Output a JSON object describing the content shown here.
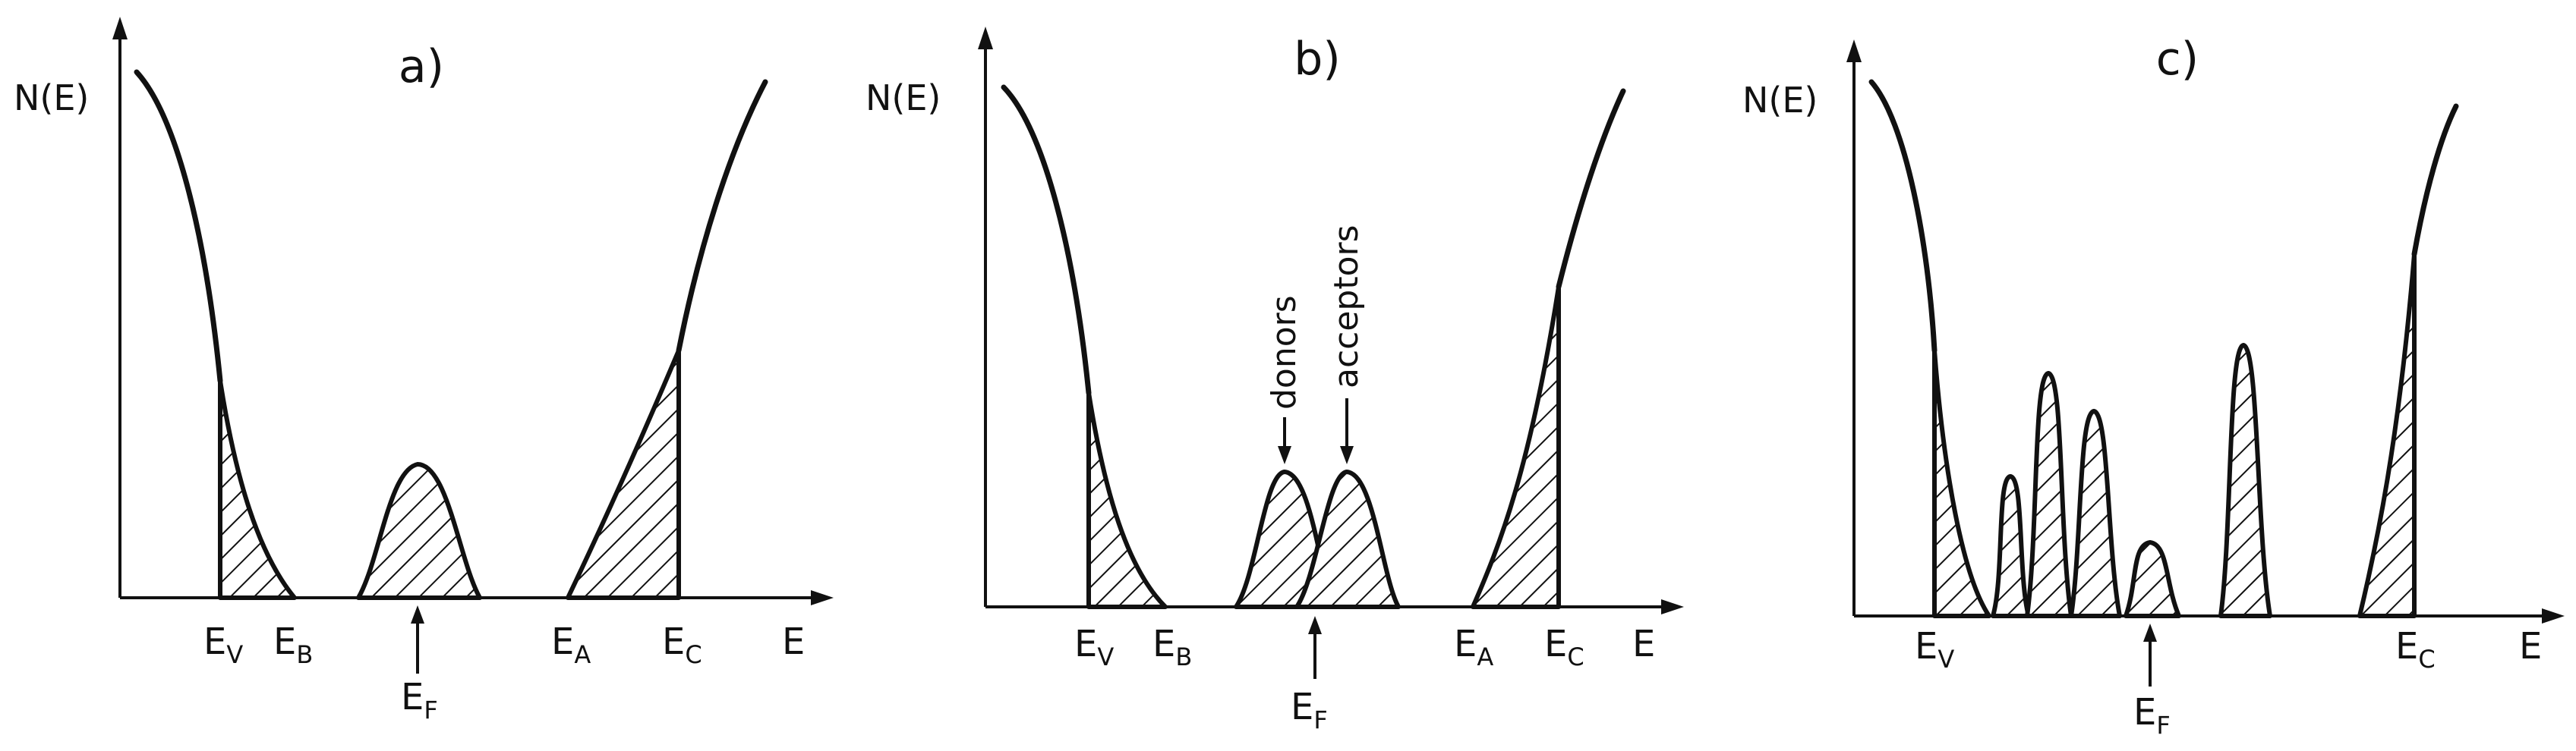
{
  "panels": [
    {
      "id": "a",
      "title": "a)",
      "y_axis_label": "N(E)",
      "x_axis_label": "E",
      "level_labels": [
        {
          "main": "E",
          "sub": "V"
        },
        {
          "main": "E",
          "sub": "B"
        },
        {
          "main": "E",
          "sub": "A"
        },
        {
          "main": "E",
          "sub": "C"
        }
      ],
      "fermi_label": {
        "main": "E",
        "sub": "F"
      }
    },
    {
      "id": "b",
      "title": "b)",
      "y_axis_label": "N(E)",
      "x_axis_label": "E",
      "level_labels": [
        {
          "main": "E",
          "sub": "V"
        },
        {
          "main": "E",
          "sub": "B"
        },
        {
          "main": "E",
          "sub": "A"
        },
        {
          "main": "E",
          "sub": "C"
        }
      ],
      "fermi_label": {
        "main": "E",
        "sub": "F"
      },
      "peak_labels": [
        "donors",
        "acceptors"
      ]
    },
    {
      "id": "c",
      "title": "c)",
      "y_axis_label": "N(E)",
      "x_axis_label": "E",
      "level_labels": [
        {
          "main": "E",
          "sub": "V"
        },
        {
          "main": "E",
          "sub": "C"
        }
      ],
      "fermi_label": {
        "main": "E",
        "sub": "F"
      }
    }
  ]
}
